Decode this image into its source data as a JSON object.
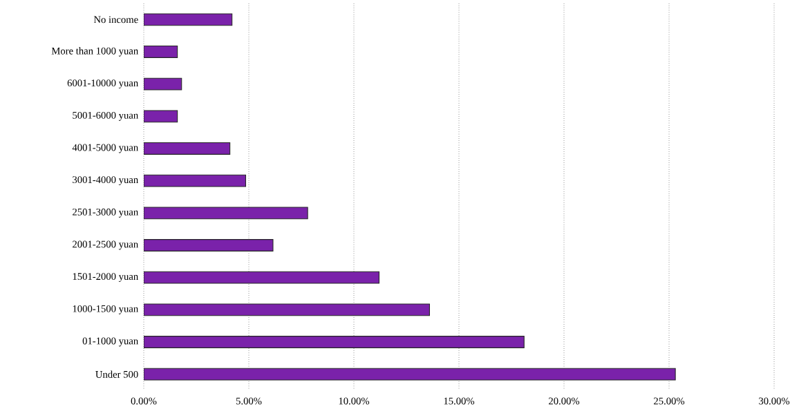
{
  "chart_data": {
    "type": "bar",
    "orientation": "horizontal",
    "categories": [
      "No income",
      "More than 1000 yuan",
      "6001-10000 yuan",
      "5001-6000 yuan",
      "4001-5000 yuan",
      "3001-4000 yuan",
      "2501-3000 yuan",
      "2001-2500 yuan",
      "1501-2000 yuan",
      "1000-1500 yuan",
      "01-1000 yuan",
      "Under 500"
    ],
    "values": [
      4.2,
      1.6,
      1.8,
      1.6,
      4.1,
      4.85,
      7.8,
      6.15,
      11.2,
      13.6,
      18.1,
      25.3
    ],
    "color": "#7a22aa",
    "xlim": [
      0,
      30
    ],
    "xticks": [
      {
        "value": 0,
        "label": "0.00%"
      },
      {
        "value": 5,
        "label": "5.00%"
      },
      {
        "value": 10,
        "label": "10.00%"
      },
      {
        "value": 15,
        "label": "15.00%"
      },
      {
        "value": 20,
        "label": "20.00%"
      },
      {
        "value": 25,
        "label": "25.00%"
      },
      {
        "value": 30,
        "label": "30.00%"
      }
    ],
    "grid": "x"
  }
}
